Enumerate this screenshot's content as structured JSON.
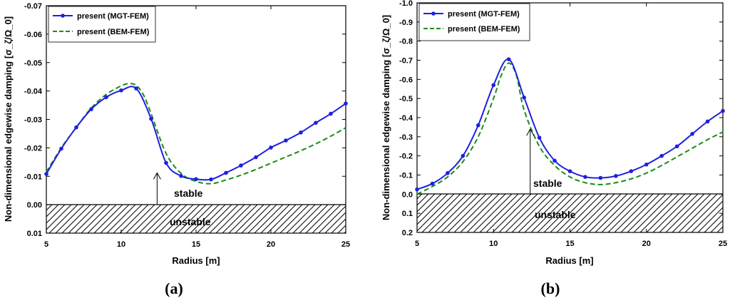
{
  "colors": {
    "mgt": "#1f1fe0",
    "bem": "#1a8c1a",
    "axis": "#000000"
  },
  "chart_data": [
    {
      "type": "line",
      "panel_label": "(a)",
      "xlabel": "Radius [m]",
      "ylabel": "Non-dimensional edgewise damping [σ_ζ/Ω_0]",
      "xlim": [
        5,
        25
      ],
      "ylim": [
        0.01,
        -0.07
      ],
      "x_ticks": [
        5,
        10,
        15,
        20,
        25
      ],
      "y_ticks": [
        0.01,
        0.0,
        -0.01,
        -0.02,
        -0.03,
        -0.04,
        -0.05,
        -0.06,
        -0.07
      ],
      "y_tick_labels": [
        "0.01",
        "0.00",
        "-0.01",
        "-0.02",
        "-0.03",
        "-0.04",
        "-0.05",
        "-0.06",
        "-0.07"
      ],
      "stable_text": "stable",
      "unstable_text": "unstable",
      "stable_arrow": {
        "x": 12.4,
        "from": 0.0,
        "to": -0.0112
      },
      "legend_position": "top-left",
      "series": [
        {
          "name": "present (MGT-FEM)",
          "style": "solid-marker",
          "x": [
            5,
            6,
            7,
            8,
            9,
            10,
            11,
            12,
            13,
            14,
            15,
            16,
            17,
            18,
            19,
            20,
            21,
            22,
            23,
            24,
            25
          ],
          "y": [
            -0.0108,
            -0.0197,
            -0.0272,
            -0.0336,
            -0.0378,
            -0.0402,
            -0.0409,
            -0.0302,
            -0.0147,
            -0.0101,
            -0.009,
            -0.0089,
            -0.0112,
            -0.0138,
            -0.0167,
            -0.0201,
            -0.0226,
            -0.0254,
            -0.0288,
            -0.032,
            -0.0356
          ]
        },
        {
          "name": "present (BEM-FEM)",
          "style": "dashed",
          "x": [
            5,
            6,
            7,
            8,
            9,
            10,
            10.5,
            11,
            11.5,
            12,
            13,
            14,
            15,
            16,
            17,
            18,
            19,
            20,
            21,
            22,
            23,
            24,
            25
          ],
          "y": [
            -0.0115,
            -0.02,
            -0.0272,
            -0.034,
            -0.0388,
            -0.0418,
            -0.0426,
            -0.042,
            -0.0385,
            -0.032,
            -0.018,
            -0.011,
            -0.0082,
            -0.0074,
            -0.0087,
            -0.0104,
            -0.0124,
            -0.0146,
            -0.0168,
            -0.019,
            -0.0214,
            -0.0241,
            -0.0271
          ]
        }
      ]
    },
    {
      "type": "line",
      "panel_label": "(b)",
      "xlabel": "Radius [m]",
      "ylabel": "Non-dimensional edgewise damping [σ_ζ/Ω_0]",
      "xlim": [
        5,
        25
      ],
      "ylim": [
        0.2,
        -1.0
      ],
      "x_ticks": [
        5,
        10,
        15,
        20,
        25
      ],
      "y_ticks": [
        0.2,
        0.1,
        0.0,
        -0.1,
        -0.2,
        -0.3,
        -0.4,
        -0.5,
        -0.6,
        -0.7,
        -0.8,
        -0.9,
        -1.0
      ],
      "y_tick_labels": [
        "0.2",
        "0.1",
        "0.0",
        "-0.1",
        "-0.2",
        "-0.3",
        "-0.4",
        "-0.5",
        "-0.6",
        "-0.7",
        "-0.8",
        "-0.9",
        "-1.0"
      ],
      "stable_text": "stable",
      "unstable_text": "unstable",
      "stable_arrow": {
        "x": 12.4,
        "from": 0.0,
        "to": -0.34
      },
      "legend_position": "top-left",
      "series": [
        {
          "name": "present (MGT-FEM)",
          "style": "solid-marker",
          "x": [
            5,
            6,
            7,
            8,
            9,
            10,
            11,
            12,
            13,
            14,
            15,
            16,
            17,
            18,
            19,
            20,
            21,
            22,
            23,
            24,
            25
          ],
          "y": [
            -0.025,
            -0.055,
            -0.11,
            -0.2,
            -0.36,
            -0.57,
            -0.705,
            -0.505,
            -0.295,
            -0.175,
            -0.12,
            -0.09,
            -0.085,
            -0.095,
            -0.12,
            -0.155,
            -0.2,
            -0.25,
            -0.315,
            -0.38,
            -0.435
          ]
        },
        {
          "name": "present (BEM-FEM)",
          "style": "dashed",
          "x": [
            5,
            6,
            7,
            8,
            9,
            10,
            10.5,
            11,
            11.5,
            12,
            13,
            14,
            15,
            16,
            17,
            18,
            19,
            20,
            21,
            22,
            23,
            24,
            25
          ],
          "y": [
            0.0,
            -0.04,
            -0.09,
            -0.17,
            -0.3,
            -0.5,
            -0.62,
            -0.685,
            -0.62,
            -0.44,
            -0.25,
            -0.15,
            -0.09,
            -0.06,
            -0.05,
            -0.06,
            -0.08,
            -0.11,
            -0.15,
            -0.195,
            -0.24,
            -0.285,
            -0.325
          ]
        }
      ]
    }
  ]
}
